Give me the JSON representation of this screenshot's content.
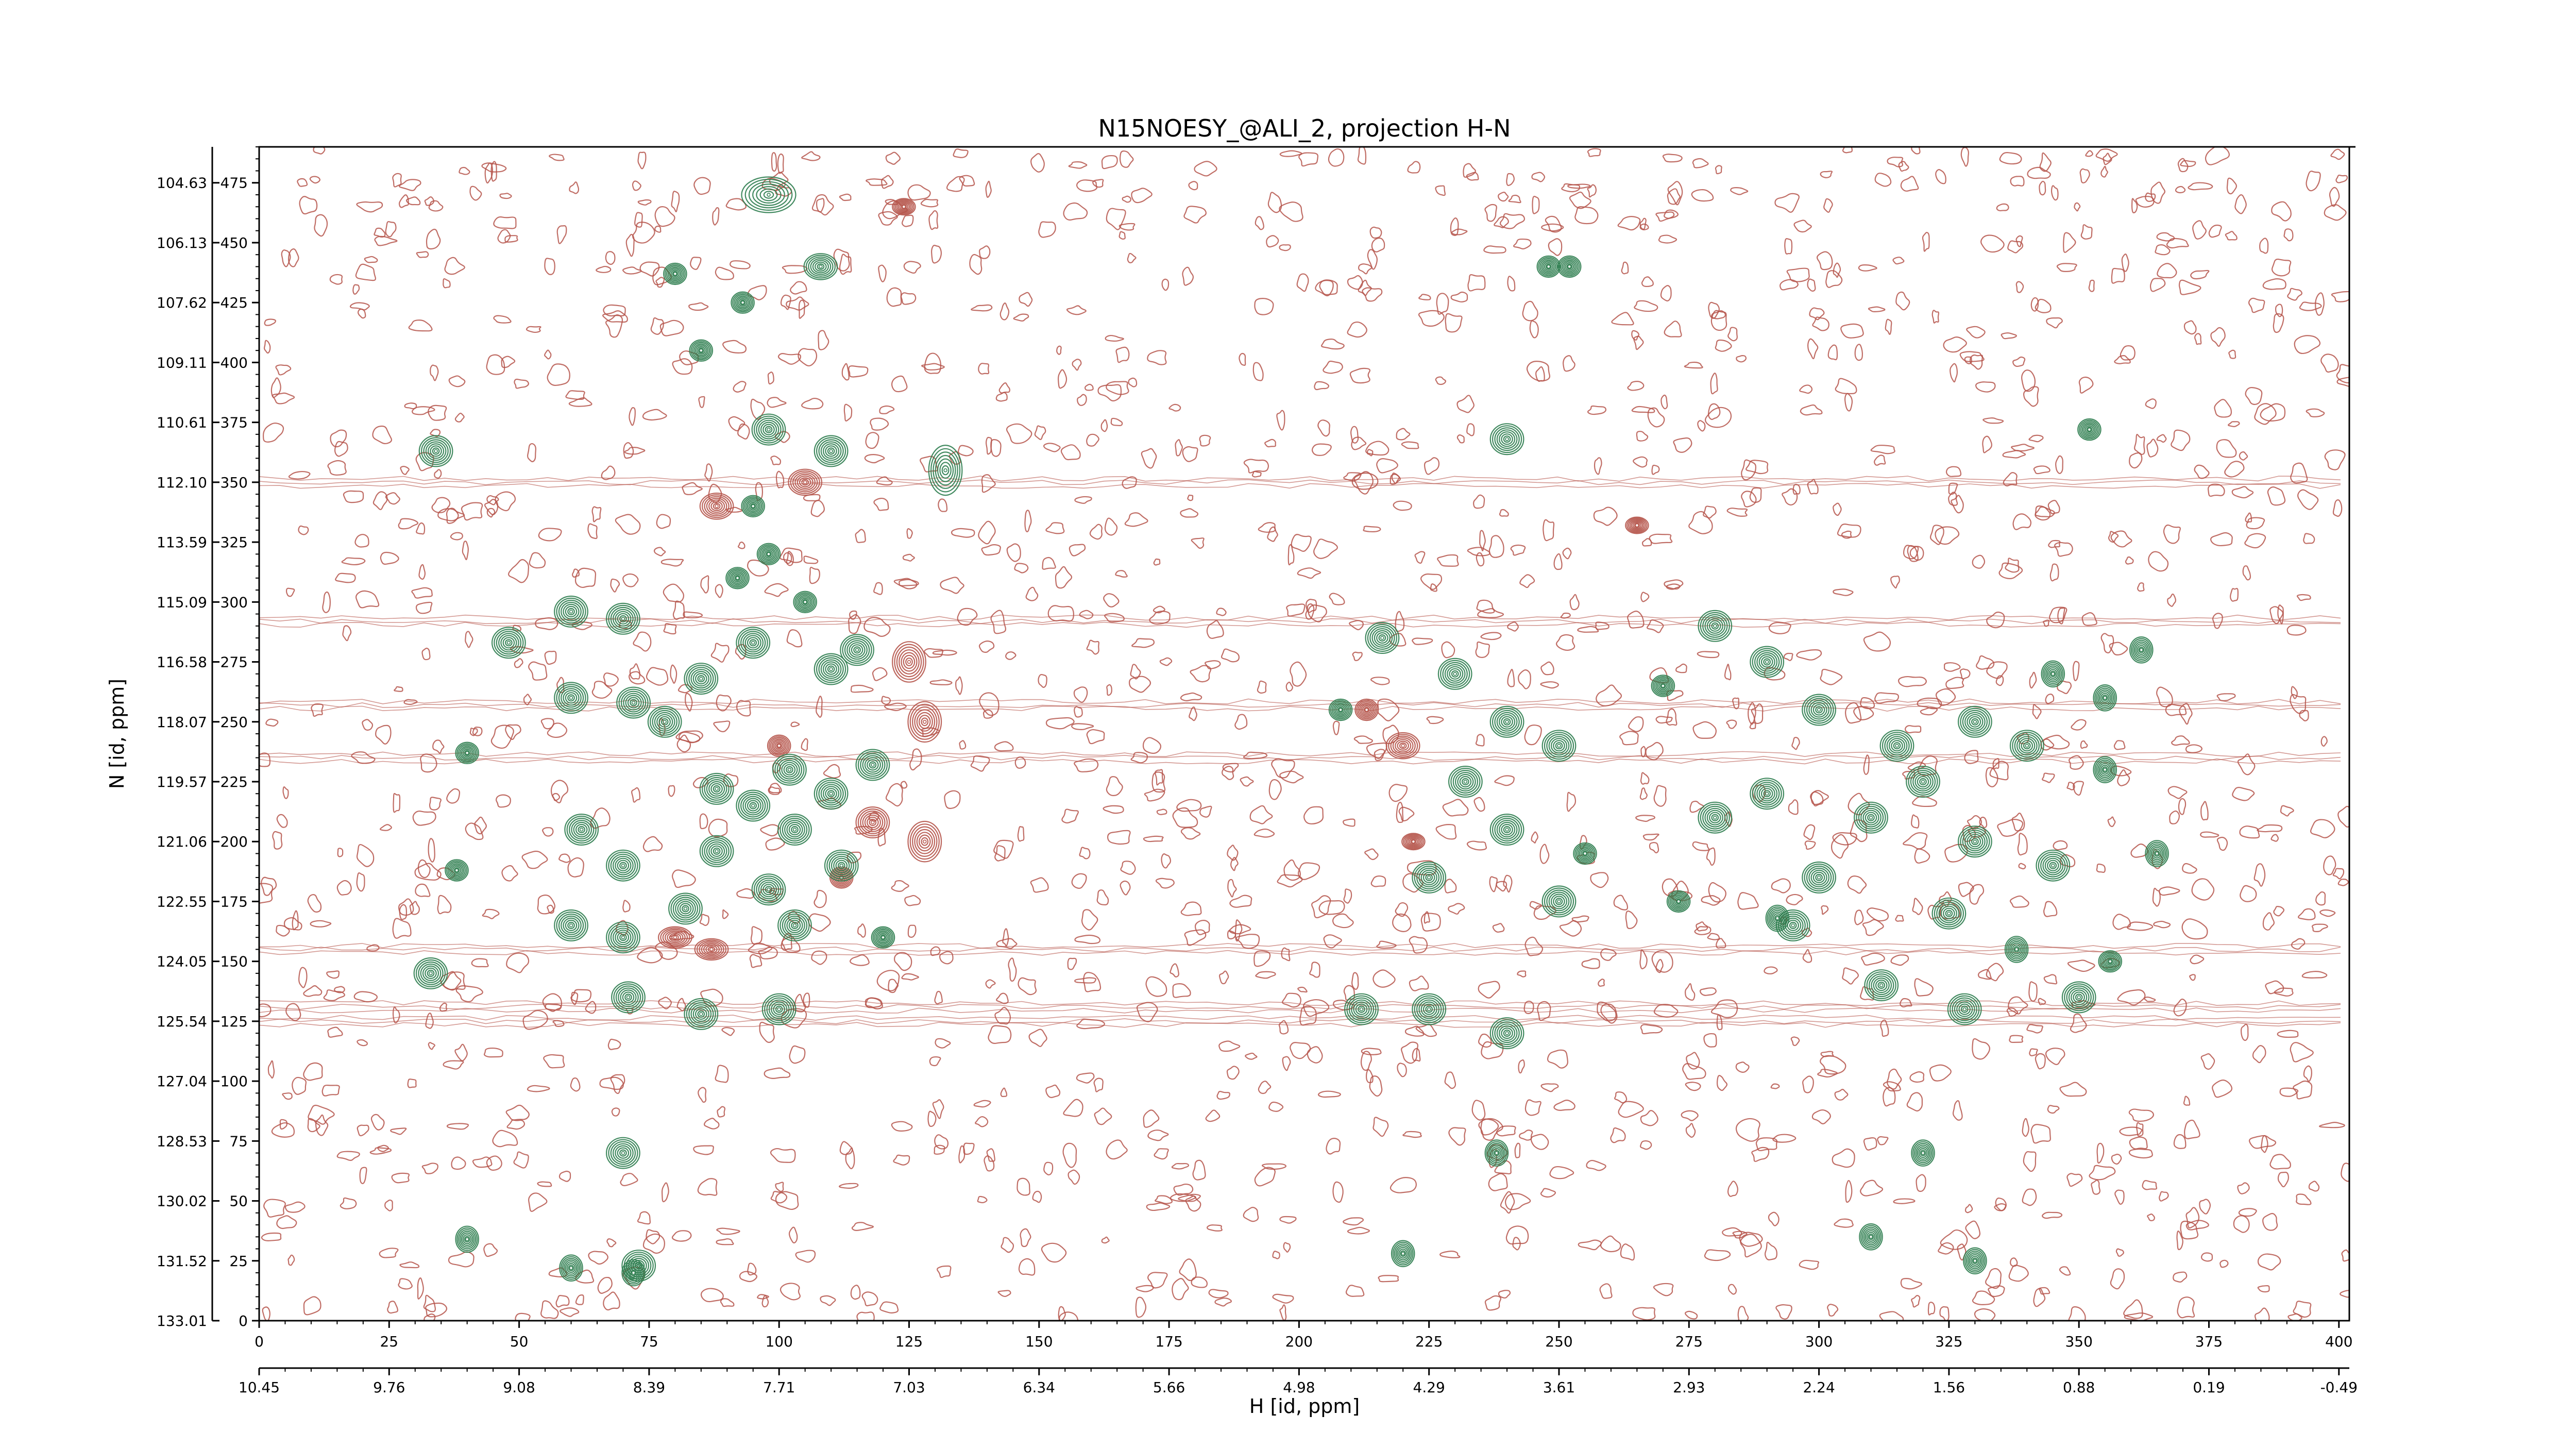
{
  "chart_data": {
    "type": "heatmap",
    "subtype": "2D NMR contour plot",
    "title": "N15NOESY_@ALI_2, projection H-N",
    "xlabel": "H [id, ppm]",
    "ylabel": "N [id, ppm]",
    "x_index_range": [
      0,
      402
    ],
    "y_index_range": [
      0,
      490
    ],
    "x_index_ticks": [
      "0",
      "25",
      "50",
      "75",
      "100",
      "125",
      "150",
      "175",
      "200",
      "225",
      "250",
      "275",
      "300",
      "325",
      "350",
      "375",
      "400"
    ],
    "x_ppm_ticks": [
      "10.45",
      "9.76",
      "9.08",
      "8.39",
      "7.71",
      "7.03",
      "6.34",
      "5.66",
      "4.98",
      "4.29",
      "3.61",
      "2.93",
      "2.24",
      "1.56",
      "0.88",
      "0.19",
      "-0.49"
    ],
    "y_index_ticks": [
      "0",
      "25",
      "50",
      "75",
      "100",
      "125",
      "150",
      "175",
      "200",
      "225",
      "250",
      "275",
      "300",
      "325",
      "350",
      "375",
      "400",
      "425",
      "450",
      "475"
    ],
    "y_ppm_ticks": [
      "133.01",
      "131.52",
      "130.02",
      "128.53",
      "127.04",
      "125.54",
      "124.05",
      "122.55",
      "121.06",
      "119.57",
      "118.07",
      "116.58",
      "115.09",
      "113.59",
      "112.10",
      "110.61",
      "109.11",
      "107.62",
      "106.13",
      "104.63"
    ],
    "colors": {
      "positive": "#2e7d4f",
      "negative": "#b5544a"
    },
    "grid": false,
    "legend": "none",
    "positive_peaks": [
      [
        34,
        363,
        3,
        6
      ],
      [
        33,
        145,
        3,
        6
      ],
      [
        40,
        237,
        2,
        4
      ],
      [
        38,
        188,
        2,
        4
      ],
      [
        73,
        23,
        3,
        6
      ],
      [
        80,
        437,
        2,
        4
      ],
      [
        98,
        470,
        5,
        7
      ],
      [
        108,
        440,
        3,
        5
      ],
      [
        110,
        363,
        3,
        6
      ],
      [
        98,
        372,
        3,
        6
      ],
      [
        132,
        355,
        3,
        10
      ],
      [
        48,
        283,
        3,
        6
      ],
      [
        60,
        296,
        3,
        6
      ],
      [
        70,
        293,
        3,
        6
      ],
      [
        60,
        260,
        3,
        6
      ],
      [
        72,
        258,
        3,
        6
      ],
      [
        78,
        250,
        3,
        6
      ],
      [
        85,
        268,
        3,
        6
      ],
      [
        95,
        283,
        3,
        6
      ],
      [
        110,
        272,
        3,
        6
      ],
      [
        115,
        280,
        3,
        6
      ],
      [
        102,
        230,
        3,
        6
      ],
      [
        110,
        220,
        3,
        6
      ],
      [
        118,
        232,
        3,
        6
      ],
      [
        88,
        222,
        3,
        6
      ],
      [
        95,
        215,
        3,
        6
      ],
      [
        103,
        205,
        3,
        6
      ],
      [
        112,
        190,
        3,
        6
      ],
      [
        98,
        180,
        3,
        6
      ],
      [
        88,
        196,
        3,
        6
      ],
      [
        62,
        205,
        3,
        6
      ],
      [
        70,
        190,
        3,
        6
      ],
      [
        82,
        172,
        3,
        6
      ],
      [
        60,
        165,
        3,
        6
      ],
      [
        70,
        160,
        3,
        6
      ],
      [
        103,
        165,
        3,
        6
      ],
      [
        100,
        130,
        3,
        6
      ],
      [
        85,
        128,
        3,
        6
      ],
      [
        71,
        135,
        3,
        6
      ],
      [
        70,
        70,
        3,
        6
      ],
      [
        40,
        34,
        2,
        5
      ],
      [
        60,
        22,
        2,
        5
      ],
      [
        72,
        20,
        2,
        5
      ],
      [
        120,
        160,
        2,
        4
      ],
      [
        95,
        340,
        2,
        4
      ],
      [
        85,
        405,
        2,
        4
      ],
      [
        93,
        425,
        2,
        4
      ],
      [
        92,
        310,
        2,
        4
      ],
      [
        98,
        320,
        2,
        4
      ],
      [
        105,
        300,
        2,
        4
      ],
      [
        216,
        285,
        3,
        6
      ],
      [
        230,
        270,
        3,
        6
      ],
      [
        240,
        250,
        3,
        6
      ],
      [
        250,
        240,
        3,
        6
      ],
      [
        232,
        225,
        3,
        6
      ],
      [
        240,
        205,
        3,
        6
      ],
      [
        225,
        185,
        3,
        6
      ],
      [
        250,
        175,
        3,
        6
      ],
      [
        225,
        130,
        3,
        6
      ],
      [
        240,
        120,
        3,
        6
      ],
      [
        212,
        130,
        3,
        6
      ],
      [
        208,
        255,
        2,
        4
      ],
      [
        240,
        368,
        3,
        6
      ],
      [
        248,
        440,
        2,
        4
      ],
      [
        270,
        265,
        2,
        4
      ],
      [
        280,
        290,
        3,
        6
      ],
      [
        290,
        275,
        3,
        6
      ],
      [
        300,
        255,
        3,
        6
      ],
      [
        315,
        240,
        3,
        6
      ],
      [
        320,
        225,
        3,
        6
      ],
      [
        330,
        250,
        3,
        6
      ],
      [
        340,
        240,
        3,
        6
      ],
      [
        310,
        210,
        3,
        6
      ],
      [
        330,
        200,
        3,
        6
      ],
      [
        300,
        185,
        3,
        6
      ],
      [
        325,
        170,
        3,
        6
      ],
      [
        345,
        190,
        3,
        6
      ],
      [
        365,
        195,
        2,
        5
      ],
      [
        280,
        210,
        3,
        6
      ],
      [
        290,
        220,
        3,
        6
      ],
      [
        295,
        165,
        3,
        6
      ],
      [
        312,
        140,
        3,
        6
      ],
      [
        328,
        130,
        3,
        6
      ],
      [
        350,
        135,
        3,
        6
      ],
      [
        355,
        260,
        2,
        5
      ],
      [
        362,
        280,
        2,
        5
      ],
      [
        352,
        372,
        2,
        4
      ],
      [
        356,
        150,
        2,
        4
      ],
      [
        330,
        25,
        2,
        5
      ],
      [
        310,
        35,
        2,
        5
      ],
      [
        220,
        28,
        2,
        5
      ],
      [
        238,
        70,
        2,
        5
      ],
      [
        252,
        440,
        2,
        4
      ],
      [
        320,
        70,
        2,
        5
      ],
      [
        292,
        168,
        2,
        5
      ],
      [
        338,
        155,
        2,
        5
      ],
      [
        345,
        270,
        2,
        5
      ],
      [
        355,
        230,
        2,
        5
      ],
      [
        273,
        175,
        2,
        4
      ],
      [
        255,
        195,
        2,
        4
      ]
    ],
    "negative_peaks": [
      [
        88,
        340,
        3,
        5
      ],
      [
        105,
        350,
        3,
        5
      ],
      [
        125,
        275,
        3,
        8
      ],
      [
        128,
        250,
        3,
        8
      ],
      [
        128,
        200,
        3,
        8
      ],
      [
        118,
        208,
        3,
        6
      ],
      [
        112,
        185,
        2,
        4
      ],
      [
        100,
        240,
        2,
        4
      ],
      [
        80,
        160,
        3,
        4
      ],
      [
        87,
        155,
        3,
        4
      ],
      [
        124,
        465,
        2,
        3
      ],
      [
        220,
        240,
        3,
        5
      ],
      [
        213,
        255,
        2,
        4
      ],
      [
        265,
        332,
        2,
        3
      ],
      [
        222,
        200,
        2,
        3
      ]
    ],
    "noise_bands_y": [
      350,
      292,
      257,
      235,
      155,
      131,
      125
    ]
  }
}
